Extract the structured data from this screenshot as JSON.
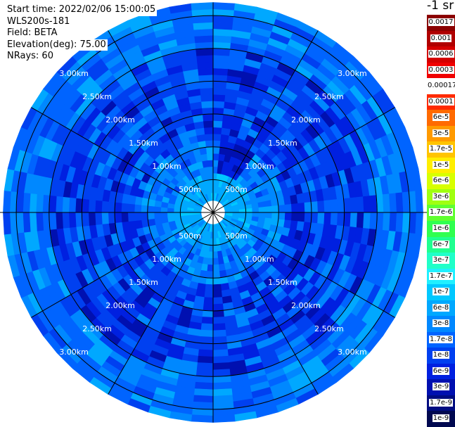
{
  "header": {
    "start_time": "Start time: 2022/02/06 15:00:05",
    "instrument": "WLS200s-181",
    "field": "Field: BETA",
    "elevation": "Elevation(deg): 75.00",
    "nrays": "NRays: 60"
  },
  "colorbar": {
    "unit_title": "-1 sr",
    "boxes": [
      {
        "label": "0.0017",
        "color": "#8b0000"
      },
      {
        "label": "0.001",
        "color": "#b00000"
      },
      {
        "label": "0.0006",
        "color": "#d40000"
      },
      {
        "label": "0.0003",
        "color": "#f00000"
      },
      {
        "label": "0.00017",
        "color": "#ffffff"
      },
      {
        "label": "0.0001",
        "color": "#ff2a00"
      },
      {
        "label": "6e-5",
        "color": "#ff6a00"
      },
      {
        "label": "3e-5",
        "color": "#ff9a00"
      },
      {
        "label": "1.7e-5",
        "color": "#ffc400"
      },
      {
        "label": "1e-5",
        "color": "#ffee00"
      },
      {
        "label": "6e-6",
        "color": "#d8ff00"
      },
      {
        "label": "3e-6",
        "color": "#a0ff10"
      },
      {
        "label": "1.7e-6",
        "color": "#60ff30"
      },
      {
        "label": "1e-6",
        "color": "#30ff50"
      },
      {
        "label": "6e-7",
        "color": "#20ff90"
      },
      {
        "label": "3e-7",
        "color": "#20ffc8"
      },
      {
        "label": "1.7e-7",
        "color": "#20f0ff"
      },
      {
        "label": "1e-7",
        "color": "#00c8ff"
      },
      {
        "label": "6e-8",
        "color": "#00a8ff"
      },
      {
        "label": "3e-8",
        "color": "#0088ff"
      },
      {
        "label": "1.7e-8",
        "color": "#0064ff"
      },
      {
        "label": "1e-8",
        "color": "#0040f0"
      },
      {
        "label": "6e-9",
        "color": "#0020e0"
      },
      {
        "label": "3e-9",
        "color": "#0010b0"
      },
      {
        "label": "1.7e-9",
        "color": "#000c80"
      },
      {
        "label": "1e-9",
        "color": "#000850"
      }
    ]
  },
  "chart_data": {
    "type": "heatmap",
    "projection": "polar PPI",
    "field": "BETA",
    "elevation_deg": 75.0,
    "n_rays": 60,
    "range_rings_km": [
      0.5,
      1.0,
      1.5,
      2.0,
      2.5,
      3.0
    ],
    "ring_labels": [
      "500m",
      "1.00km",
      "1.50km",
      "2.00km",
      "2.50km",
      "3.00km"
    ],
    "max_range_km": 3.2,
    "spoke_angles_deg": [
      0,
      30,
      60,
      90,
      120,
      150,
      180,
      210,
      240,
      270,
      300,
      330
    ],
    "dominant_value_range": [
      1e-09,
      1e-07
    ],
    "near_range_value": 6e-08,
    "far_range_value": 3e-08,
    "mid_range_value": 3e-09
  }
}
